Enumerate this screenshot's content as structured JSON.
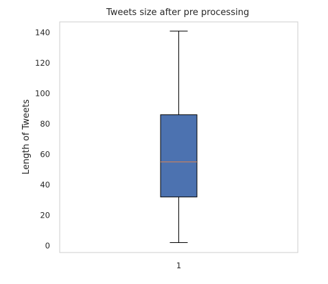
{
  "chart_data": {
    "type": "box",
    "title": "Tweets size after pre processing",
    "xlabel": "",
    "ylabel": "Length of Tweets",
    "categories": [
      "1"
    ],
    "ylim": [
      -4.5,
      147
    ],
    "yticks": [
      0,
      20,
      40,
      60,
      80,
      100,
      120,
      140
    ],
    "grid": false,
    "boxes": [
      {
        "category": "1",
        "whisker_low": 2,
        "q1": 32,
        "median": 55,
        "q3": 86,
        "whisker_high": 141
      }
    ],
    "colors": {
      "box_fill": "#4C72B0",
      "median_line": "#DD8452",
      "lines": "#000000",
      "frame": "#CCCCCC",
      "text": "#262626"
    }
  }
}
